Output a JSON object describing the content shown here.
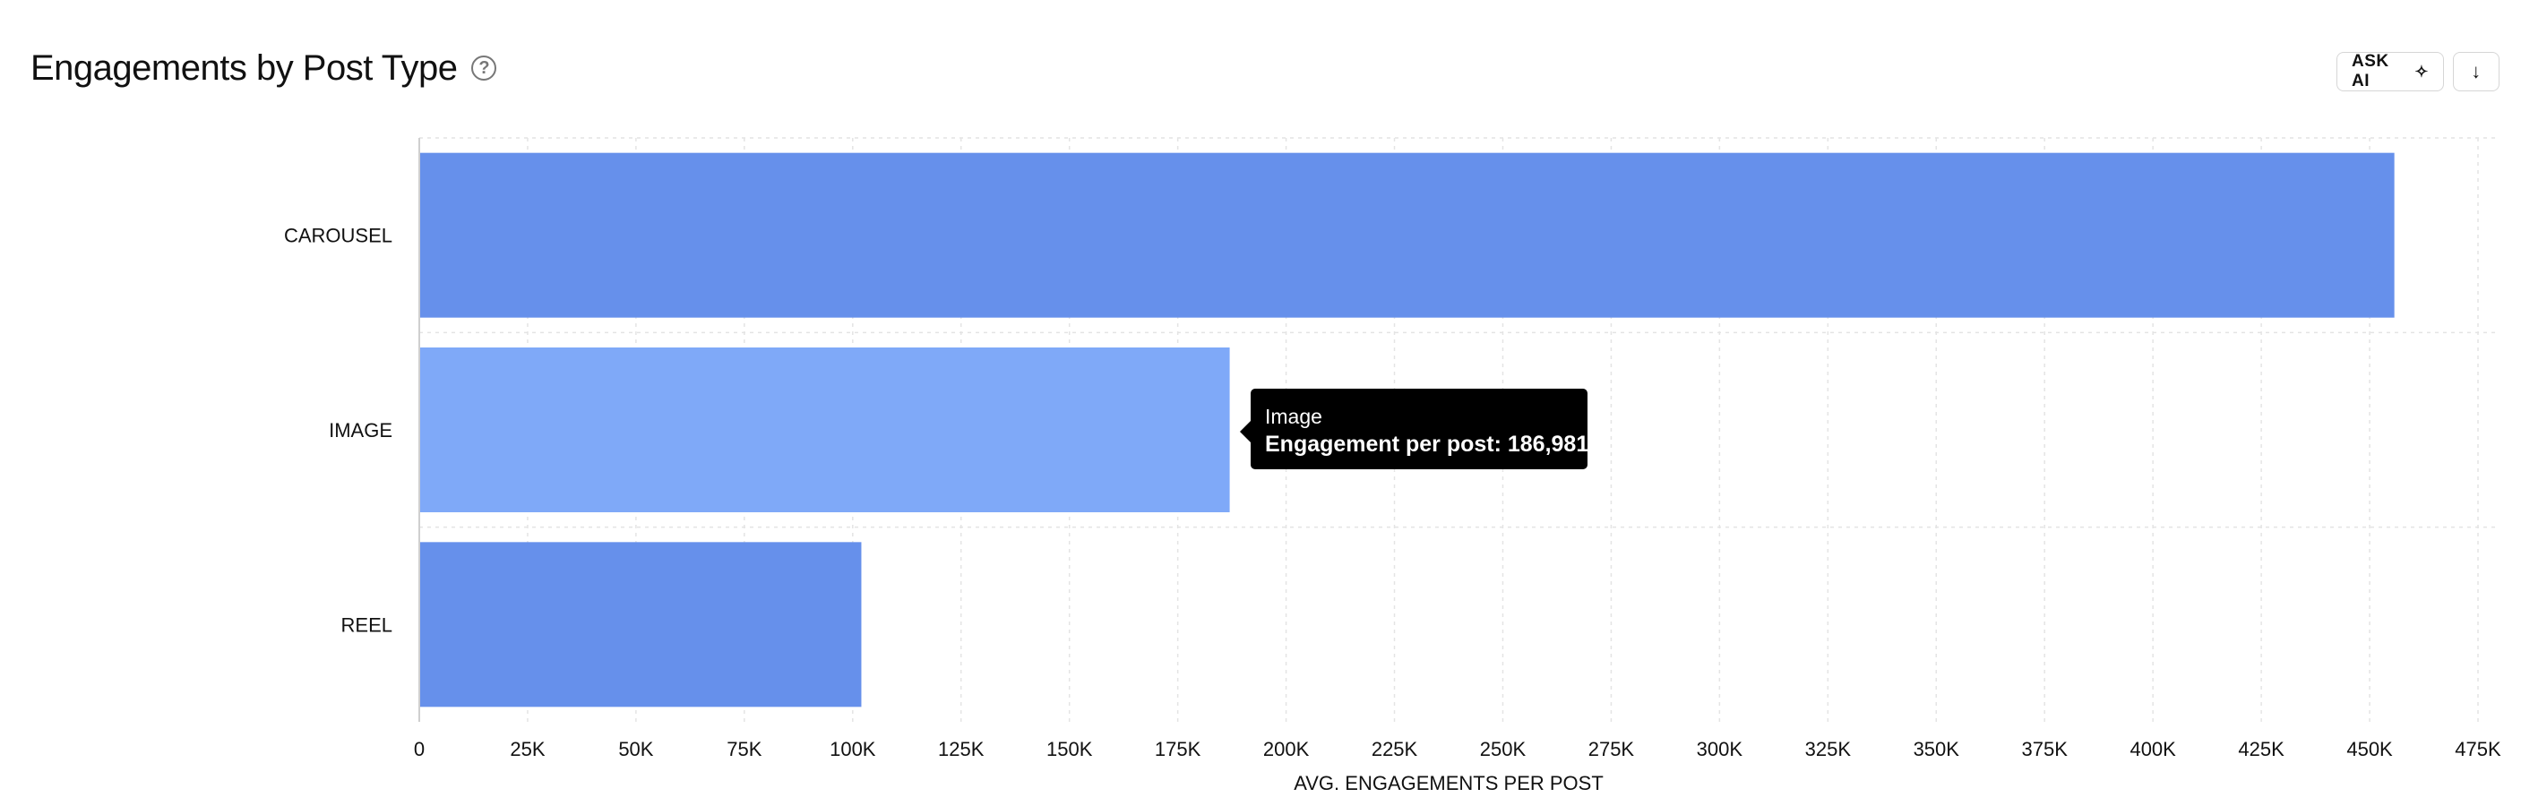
{
  "header": {
    "title": "Engagements by Post Type",
    "help_icon": "question-circle-icon"
  },
  "toolbar": {
    "ask_ai_label": "ASK AI",
    "ask_ai_icon": "sparkle-icon",
    "download_icon": "arrow-down-icon"
  },
  "tooltip": {
    "title": "Image",
    "label": "Engagement per post: 186,981"
  },
  "colors": {
    "bar": "#6690EB",
    "bar_hover": "#7FA9F8",
    "grid": "#e4e4e4"
  },
  "chart_data": {
    "type": "bar",
    "orientation": "horizontal",
    "categories": [
      "CAROUSEL",
      "IMAGE",
      "REEL"
    ],
    "values": [
      455700,
      186981,
      102000
    ],
    "highlighted_index": 1,
    "xlabel": "AVG. ENGAGEMENTS PER POST",
    "ylabel": "",
    "xlim": [
      0,
      475000
    ],
    "xticks": [
      0,
      25000,
      50000,
      75000,
      100000,
      125000,
      150000,
      175000,
      200000,
      225000,
      250000,
      275000,
      300000,
      325000,
      350000,
      375000,
      400000,
      425000,
      450000,
      475000
    ],
    "xtick_labels": [
      "0",
      "25K",
      "50K",
      "75K",
      "100K",
      "125K",
      "150K",
      "175K",
      "200K",
      "225K",
      "250K",
      "275K",
      "300K",
      "325K",
      "350K",
      "375K",
      "400K",
      "425K",
      "450K",
      "475K"
    ],
    "grid": true,
    "legend": "none"
  }
}
